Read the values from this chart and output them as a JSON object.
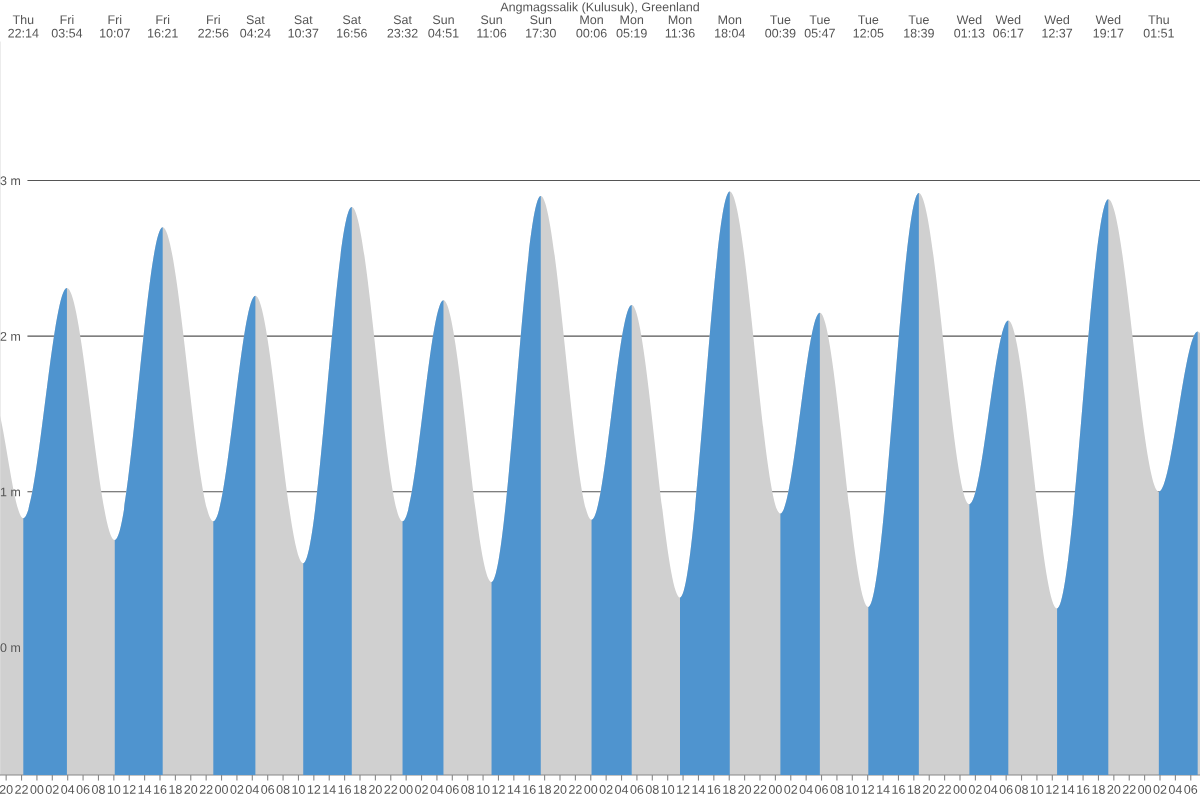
{
  "chart_data": {
    "type": "area",
    "title": "Angmagssalik (Kulusuk), Greenland",
    "x": [
      19.2,
      22.23,
      27.9,
      34.12,
      40.35,
      46.93,
      52.4,
      58.62,
      64.93,
      71.53,
      76.85,
      83.1,
      89.5,
      96.1,
      101.32,
      107.6,
      114.07,
      120.65,
      125.78,
      132.08,
      138.65,
      145.22,
      150.28,
      156.62,
      163.28,
      169.85,
      174.9,
      175.2
    ],
    "series": [
      {
        "color": "#d0d0d0",
        "values": [
          1.49,
          0.83,
          2.31,
          0.69,
          2.7,
          0.81,
          2.26,
          0.54,
          2.83,
          0.81,
          2.23,
          0.42,
          2.9,
          0.82,
          2.2,
          0.32,
          2.93,
          0.86,
          2.15,
          0.26,
          2.92,
          0.92,
          2.1,
          0.25,
          2.88,
          1.0,
          2.03,
          2.02
        ]
      }
    ],
    "bands": [
      {
        "axis": "x",
        "from": 22.23,
        "to": 27.9,
        "color": "#4f94cf"
      },
      {
        "axis": "x",
        "from": 34.12,
        "to": 40.35,
        "color": "#4f94cf"
      },
      {
        "axis": "x",
        "from": 46.93,
        "to": 52.4,
        "color": "#4f94cf"
      },
      {
        "axis": "x",
        "from": 58.62,
        "to": 64.93,
        "color": "#4f94cf"
      },
      {
        "axis": "x",
        "from": 71.53,
        "to": 76.85,
        "color": "#4f94cf"
      },
      {
        "axis": "x",
        "from": 83.1,
        "to": 89.5,
        "color": "#4f94cf"
      },
      {
        "axis": "x",
        "from": 96.1,
        "to": 101.32,
        "color": "#4f94cf"
      },
      {
        "axis": "x",
        "from": 107.6,
        "to": 114.07,
        "color": "#4f94cf"
      },
      {
        "axis": "x",
        "from": 120.65,
        "to": 125.78,
        "color": "#4f94cf"
      },
      {
        "axis": "x",
        "from": 132.08,
        "to": 138.65,
        "color": "#4f94cf"
      },
      {
        "axis": "x",
        "from": 145.22,
        "to": 150.28,
        "color": "#4f94cf"
      },
      {
        "axis": "x",
        "from": 156.62,
        "to": 163.28,
        "color": "#4f94cf"
      },
      {
        "axis": "x",
        "from": 169.85,
        "to": 174.9,
        "color": "#4f94cf"
      }
    ],
    "xlim": [
      19.2,
      175.2
    ],
    "ylim": [
      -0.82,
      3.89
    ],
    "yticks": [
      {
        "value": 0,
        "label": "0 m"
      },
      {
        "value": 1,
        "label": "1 m"
      },
      {
        "value": 2,
        "label": "2 m"
      },
      {
        "value": 3,
        "label": "3 m"
      }
    ],
    "grid": "y",
    "xticks": [
      {
        "value": 20,
        "label": "20"
      },
      {
        "value": 22,
        "label": "22"
      },
      {
        "value": 24,
        "label": "00"
      },
      {
        "value": 26,
        "label": "02"
      },
      {
        "value": 28,
        "label": "04"
      },
      {
        "value": 30,
        "label": "06"
      },
      {
        "value": 32,
        "label": "08"
      },
      {
        "value": 34,
        "label": "10"
      },
      {
        "value": 36,
        "label": "12"
      },
      {
        "value": 38,
        "label": "14"
      },
      {
        "value": 40,
        "label": "16"
      },
      {
        "value": 42,
        "label": "18"
      },
      {
        "value": 44,
        "label": "20"
      },
      {
        "value": 46,
        "label": "22"
      },
      {
        "value": 48,
        "label": "00"
      },
      {
        "value": 50,
        "label": "02"
      },
      {
        "value": 52,
        "label": "04"
      },
      {
        "value": 54,
        "label": "06"
      },
      {
        "value": 56,
        "label": "08"
      },
      {
        "value": 58,
        "label": "10"
      },
      {
        "value": 60,
        "label": "12"
      },
      {
        "value": 62,
        "label": "14"
      },
      {
        "value": 64,
        "label": "16"
      },
      {
        "value": 66,
        "label": "18"
      },
      {
        "value": 68,
        "label": "20"
      },
      {
        "value": 70,
        "label": "22"
      },
      {
        "value": 72,
        "label": "00"
      },
      {
        "value": 74,
        "label": "02"
      },
      {
        "value": 76,
        "label": "04"
      },
      {
        "value": 78,
        "label": "06"
      },
      {
        "value": 80,
        "label": "08"
      },
      {
        "value": 82,
        "label": "10"
      },
      {
        "value": 84,
        "label": "12"
      },
      {
        "value": 86,
        "label": "14"
      },
      {
        "value": 88,
        "label": "16"
      },
      {
        "value": 90,
        "label": "18"
      },
      {
        "value": 92,
        "label": "20"
      },
      {
        "value": 94,
        "label": "22"
      },
      {
        "value": 96,
        "label": "00"
      },
      {
        "value": 98,
        "label": "02"
      },
      {
        "value": 100,
        "label": "04"
      },
      {
        "value": 102,
        "label": "06"
      },
      {
        "value": 104,
        "label": "08"
      },
      {
        "value": 106,
        "label": "10"
      },
      {
        "value": 108,
        "label": "12"
      },
      {
        "value": 110,
        "label": "14"
      },
      {
        "value": 112,
        "label": "16"
      },
      {
        "value": 114,
        "label": "18"
      },
      {
        "value": 116,
        "label": "20"
      },
      {
        "value": 118,
        "label": "22"
      },
      {
        "value": 120,
        "label": "00"
      },
      {
        "value": 122,
        "label": "02"
      },
      {
        "value": 124,
        "label": "04"
      },
      {
        "value": 126,
        "label": "06"
      },
      {
        "value": 128,
        "label": "08"
      },
      {
        "value": 130,
        "label": "10"
      },
      {
        "value": 132,
        "label": "12"
      },
      {
        "value": 134,
        "label": "14"
      },
      {
        "value": 136,
        "label": "16"
      },
      {
        "value": 138,
        "label": "18"
      },
      {
        "value": 140,
        "label": "20"
      },
      {
        "value": 142,
        "label": "22"
      },
      {
        "value": 144,
        "label": "00"
      },
      {
        "value": 146,
        "label": "02"
      },
      {
        "value": 148,
        "label": "04"
      },
      {
        "value": 150,
        "label": "06"
      },
      {
        "value": 152,
        "label": "08"
      },
      {
        "value": 154,
        "label": "10"
      },
      {
        "value": 156,
        "label": "12"
      },
      {
        "value": 158,
        "label": "14"
      },
      {
        "value": 160,
        "label": "16"
      },
      {
        "value": 162,
        "label": "18"
      },
      {
        "value": 164,
        "label": "20"
      },
      {
        "value": 166,
        "label": "22"
      },
      {
        "value": 168,
        "label": "00"
      },
      {
        "value": 170,
        "label": "02"
      },
      {
        "value": 172,
        "label": "04"
      },
      {
        "value": 174,
        "label": "06"
      }
    ],
    "annotations": [
      "Thu\n22:14",
      "Fri\n03:54",
      "Fri\n10:07",
      "Fri\n16:21",
      "Fri\n22:56",
      "Sat\n04:24",
      "Sat\n10:37",
      "Sat\n16:56",
      "Sat\n23:32",
      "Sun\n04:51",
      "Sun\n11:06",
      "Sun\n17:30",
      "Mon\n00:06",
      "Mon\n05:19",
      "Mon\n11:36",
      "Mon\n18:04",
      "Tue\n00:39",
      "Tue\n05:47",
      "Tue\n12:05",
      "Tue\n18:39",
      "Wed\n01:13",
      "Wed\n06:17",
      "Wed\n12:37",
      "Wed\n19:17",
      "Thu\n01:51"
    ]
  }
}
